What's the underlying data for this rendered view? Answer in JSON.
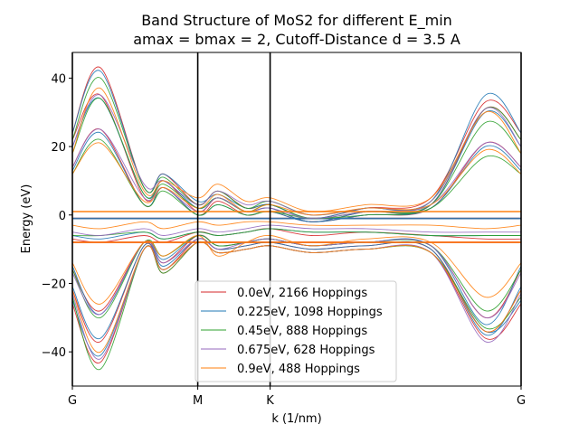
{
  "chart_data": {
    "type": "line",
    "title_line1": "Band Structure of MoS2 for different E_min",
    "title_line2": "amax = bmax = 2, Cutoff-Distance d = 3.5 A",
    "xlabel": "k (1/nm)",
    "ylabel": "Energy (eV)",
    "ylim": [
      -50,
      47.5
    ],
    "yticks": [
      -40,
      -20,
      0,
      20,
      40
    ],
    "x_ticks": [
      {
        "label": "G",
        "pos": 0
      },
      {
        "label": "M",
        "pos": 0.577
      },
      {
        "label": "K",
        "pos": 0.91
      },
      {
        "label": "G",
        "pos": 2.065
      }
    ],
    "xlim": [
      0,
      2.065
    ],
    "grid": false,
    "legend_position": "lower center",
    "series": [
      {
        "name": "0.0eV, 2166 Hoppings",
        "color": "#d62728",
        "anchors": [
          [
            24,
            43,
            8,
            12,
            3,
            7,
            2,
            3,
            -1,
            2,
            5,
            33,
            24
          ],
          [
            22,
            35,
            5,
            10,
            1,
            5,
            1,
            2,
            -2,
            1,
            3,
            31,
            22
          ],
          [
            14,
            25,
            3,
            8,
            0,
            4,
            0,
            1,
            -2,
            0,
            2,
            21,
            14
          ],
          [
            -1,
            -1,
            -1,
            -1,
            -1,
            -1,
            -1,
            -1,
            -1,
            -1,
            -1,
            -1,
            -1
          ],
          [
            -7,
            -8,
            -6,
            -8,
            -5,
            -6,
            -5,
            -4,
            -6,
            -5,
            -6,
            -7,
            -7
          ],
          [
            -8,
            -8,
            -8,
            -8,
            -8,
            -8,
            -8,
            -8,
            -8,
            -8,
            -8,
            -8,
            -8
          ],
          [
            -16,
            -28,
            -8,
            -14,
            -6,
            -9,
            -8,
            -7,
            -9,
            -8,
            -9,
            -30,
            -16
          ],
          [
            -22,
            -37,
            -9,
            -16,
            -7,
            -10,
            -9,
            -8,
            -10,
            -9,
            -10,
            -34,
            -22
          ],
          [
            -26,
            -43,
            -10,
            -17,
            -8,
            -11,
            -10,
            -9,
            -11,
            -10,
            -11,
            -36,
            -26
          ]
        ]
      },
      {
        "name": "0.225eV, 1098 Hoppings",
        "color": "#1f77b4",
        "anchors": [
          [
            24,
            42,
            8,
            12,
            4,
            6,
            2,
            3,
            -1,
            2,
            4,
            35,
            24
          ],
          [
            20,
            34,
            6,
            10,
            2,
            5,
            1,
            2,
            -2,
            1,
            3,
            30,
            20
          ],
          [
            13,
            24,
            3,
            8,
            0,
            3,
            0,
            1,
            -2,
            0,
            2,
            20,
            13
          ],
          [
            -1,
            -1,
            -1,
            -1,
            -1,
            -1,
            -1,
            -1,
            -1,
            -1,
            -1,
            -1,
            -1
          ],
          [
            -6,
            -7,
            -5,
            -7,
            -5,
            -6,
            -5,
            -4,
            -5,
            -5,
            -6,
            -6,
            -6
          ],
          [
            -15,
            -29,
            -8,
            -13,
            -6,
            -9,
            -8,
            -7,
            -9,
            -8,
            -9,
            -32,
            -15
          ],
          [
            -21,
            -36,
            -9,
            -15,
            -7,
            -10,
            -9,
            -8,
            -10,
            -9,
            -10,
            -35,
            -21
          ],
          [
            -25,
            -41,
            -10,
            -16,
            -8,
            -11,
            -10,
            -9,
            -11,
            -10,
            -11,
            -34,
            -25
          ]
        ]
      },
      {
        "name": "0.45eV, 888 Hoppings",
        "color": "#2ca02c",
        "anchors": [
          [
            22,
            40,
            8,
            11,
            3,
            7,
            2,
            4,
            0,
            2,
            4,
            31,
            22
          ],
          [
            18,
            34,
            6,
            9,
            2,
            5,
            1,
            3,
            -1,
            1,
            3,
            27,
            18
          ],
          [
            12,
            22,
            3,
            7,
            0,
            3,
            0,
            1,
            -1,
            0,
            2,
            17,
            12
          ],
          [
            -6,
            -6,
            -5,
            -7,
            -5,
            -6,
            -5,
            -4,
            -5,
            -5,
            -6,
            -6,
            -6
          ],
          [
            -16,
            -30,
            -8,
            -12,
            -6,
            -9,
            -8,
            -7,
            -9,
            -8,
            -9,
            -28,
            -16
          ],
          [
            -24,
            -45,
            -10,
            -17,
            -8,
            -11,
            -10,
            -9,
            -11,
            -10,
            -11,
            -33,
            -24
          ]
        ]
      },
      {
        "name": "0.675eV, 628 Hoppings",
        "color": "#9467bd",
        "anchors": [
          [
            20,
            35,
            9,
            10,
            3,
            7,
            3,
            4,
            0,
            2,
            4,
            31,
            20
          ],
          [
            14,
            25,
            5,
            8,
            1,
            5,
            1,
            2,
            -1,
            1,
            3,
            21,
            14
          ],
          [
            -5,
            -6,
            -4,
            -6,
            -4,
            -5,
            -4,
            -3,
            -4,
            -4,
            -5,
            -5,
            -5
          ],
          [
            -17,
            -29,
            -8,
            -14,
            -7,
            -10,
            -8,
            -7,
            -9,
            -8,
            -9,
            -30,
            -17
          ],
          [
            -23,
            -42,
            -10,
            -16,
            -8,
            -11,
            -10,
            -9,
            -11,
            -10,
            -11,
            -37,
            -23
          ]
        ]
      },
      {
        "name": "0.9eV, 488 Hoppings",
        "color": "#ff7f0e",
        "anchors": [
          [
            18,
            37,
            7,
            10,
            5,
            9,
            4,
            5,
            1,
            3,
            5,
            30,
            18
          ],
          [
            12,
            21,
            4,
            8,
            2,
            6,
            1,
            3,
            0,
            2,
            3,
            19,
            12
          ],
          [
            1,
            1,
            1,
            1,
            1,
            1,
            1,
            1,
            1,
            1,
            1,
            1,
            1
          ],
          [
            -3,
            -4,
            -2,
            -4,
            -2,
            -3,
            -2,
            -2,
            -3,
            -3,
            -3,
            -4,
            -3
          ],
          [
            -8,
            -8,
            -8,
            -8,
            -8,
            -8,
            -8,
            -8,
            -8,
            -8,
            -8,
            -8,
            -8
          ],
          [
            -14,
            -26,
            -8,
            -12,
            -6,
            -12,
            -8,
            -6,
            -9,
            -7,
            -8,
            -24,
            -14
          ],
          [
            -22,
            -40,
            -10,
            -16,
            -8,
            -11,
            -10,
            -9,
            -11,
            -10,
            -11,
            -34,
            -22
          ]
        ]
      }
    ],
    "anchor_x": [
      0,
      0.13,
      0.33,
      0.42,
      0.577,
      0.67,
      0.8,
      0.91,
      1.1,
      1.35,
      1.65,
      1.9,
      2.065
    ]
  }
}
